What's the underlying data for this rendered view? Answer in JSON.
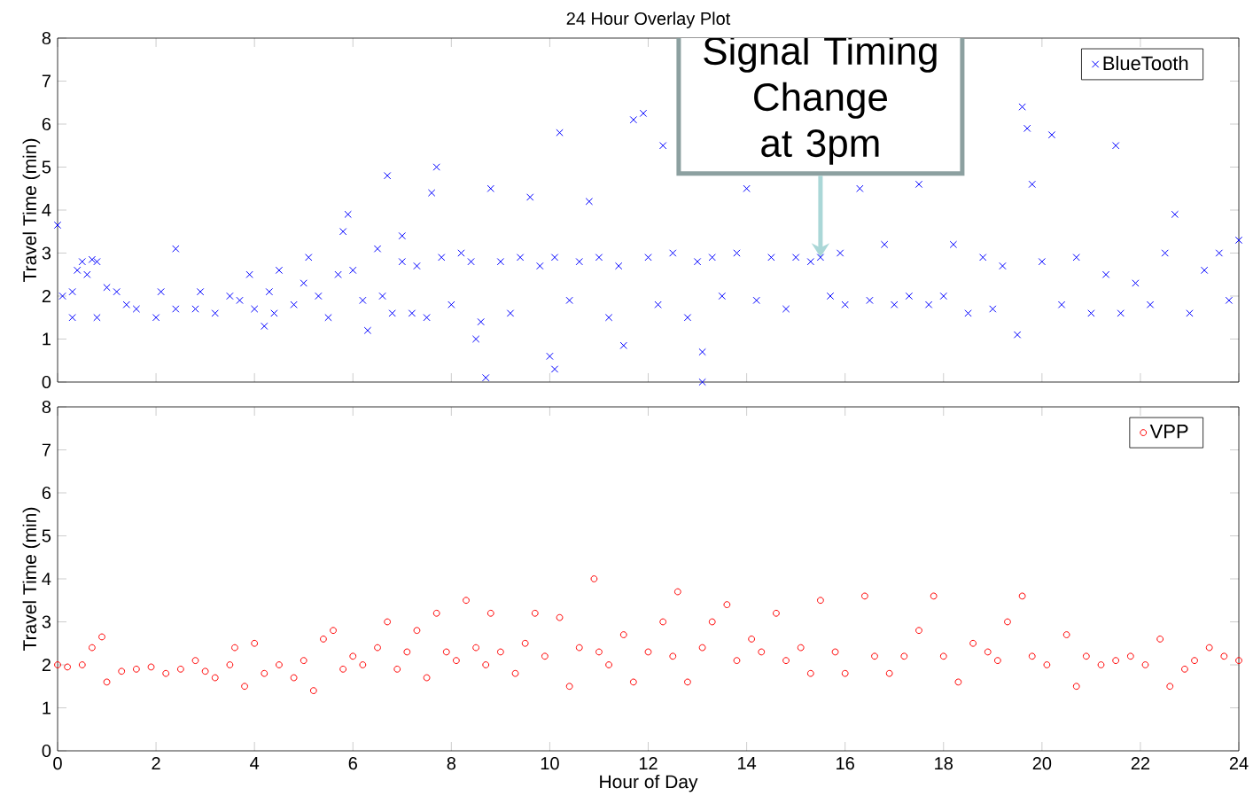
{
  "chart_data": [
    {
      "type": "scatter",
      "title": "24 Hour Overlay Plot",
      "ylabel": "Travel Time (min)",
      "xlim": [
        0,
        24
      ],
      "ylim": [
        0,
        8
      ],
      "xticks": [
        0,
        2,
        4,
        6,
        8,
        10,
        12,
        14,
        16,
        18,
        20,
        22,
        24
      ],
      "yticks": [
        0,
        1,
        2,
        3,
        4,
        5,
        6,
        7,
        8
      ],
      "tick_labels": "y",
      "legend": "top right",
      "marker": "cross",
      "grid": false,
      "annotations": [
        {
          "text": "Signal Timing Change at 3pm",
          "x": 15.5,
          "y": 2.9
        }
      ],
      "series": [
        {
          "name": "BlueTooth",
          "color": "#0000ff",
          "x": [
            0.0,
            0.1,
            0.3,
            0.3,
            0.4,
            0.5,
            0.6,
            0.7,
            0.8,
            0.8,
            1.0,
            1.2,
            1.4,
            1.6,
            2.0,
            2.1,
            2.4,
            2.4,
            2.8,
            2.9,
            3.2,
            3.5,
            3.7,
            3.9,
            4.0,
            4.2,
            4.3,
            4.4,
            4.5,
            4.8,
            5.0,
            5.1,
            5.3,
            5.5,
            5.7,
            5.8,
            5.9,
            6.0,
            6.2,
            6.3,
            6.5,
            6.6,
            6.7,
            6.8,
            7.0,
            7.0,
            7.2,
            7.3,
            7.5,
            7.6,
            7.7,
            7.8,
            8.0,
            8.2,
            8.4,
            8.5,
            8.6,
            8.7,
            8.8,
            9.0,
            9.2,
            9.4,
            9.6,
            9.8,
            10.0,
            10.1,
            10.1,
            10.2,
            10.4,
            10.6,
            10.8,
            11.0,
            11.2,
            11.4,
            11.5,
            11.7,
            11.9,
            12.0,
            12.2,
            12.3,
            12.5,
            12.8,
            13.0,
            13.1,
            13.1,
            13.3,
            13.5,
            13.8,
            14.0,
            14.2,
            14.5,
            14.8,
            15.0,
            15.3,
            15.5,
            15.7,
            15.9,
            16.0,
            16.3,
            16.5,
            16.8,
            17.0,
            17.3,
            17.5,
            17.7,
            18.0,
            18.2,
            18.5,
            18.8,
            19.0,
            19.2,
            19.5,
            19.6,
            19.7,
            19.8,
            20.0,
            20.2,
            20.4,
            20.7,
            21.0,
            21.3,
            21.5,
            21.6,
            21.9,
            22.2,
            22.5,
            22.7,
            23.0,
            23.3,
            23.6,
            23.8,
            24.0
          ],
          "values": [
            3.65,
            2.0,
            2.1,
            1.5,
            2.6,
            2.8,
            2.5,
            2.85,
            1.5,
            2.8,
            2.2,
            2.1,
            1.8,
            1.7,
            1.5,
            2.1,
            1.7,
            3.1,
            1.7,
            2.1,
            1.6,
            2.0,
            1.9,
            2.5,
            1.7,
            1.3,
            2.1,
            1.6,
            2.6,
            1.8,
            2.3,
            2.9,
            2.0,
            1.5,
            2.5,
            3.5,
            3.9,
            2.6,
            1.9,
            1.2,
            3.1,
            2.0,
            4.8,
            1.6,
            2.8,
            3.4,
            1.6,
            2.7,
            1.5,
            4.4,
            5.0,
            2.9,
            1.8,
            3.0,
            2.8,
            1.0,
            1.4,
            0.1,
            4.5,
            2.8,
            1.6,
            2.9,
            4.3,
            2.7,
            0.6,
            0.3,
            2.9,
            5.8,
            1.9,
            2.8,
            4.2,
            2.9,
            1.5,
            2.7,
            0.85,
            6.1,
            6.25,
            2.9,
            1.8,
            5.5,
            3.0,
            1.5,
            2.8,
            0.7,
            0.0,
            2.9,
            2.0,
            3.0,
            4.5,
            1.9,
            2.9,
            1.7,
            2.9,
            2.8,
            2.9,
            2.0,
            3.0,
            1.8,
            4.5,
            1.9,
            3.2,
            1.8,
            2.0,
            4.6,
            1.8,
            2.0,
            3.2,
            1.6,
            2.9,
            1.7,
            2.7,
            1.1,
            6.4,
            5.9,
            4.6,
            2.8,
            5.75,
            1.8,
            2.9,
            1.6,
            2.5,
            5.5,
            1.6,
            2.3,
            1.8,
            3.0,
            3.9,
            1.6,
            2.6,
            3.0,
            1.9,
            3.3
          ]
        }
      ]
    },
    {
      "type": "scatter",
      "xlabel": "Hour of Day",
      "ylabel": "Travel Time (min)",
      "xlim": [
        0,
        24
      ],
      "ylim": [
        0,
        8
      ],
      "xticks": [
        0,
        2,
        4,
        6,
        8,
        10,
        12,
        14,
        16,
        18,
        20,
        22,
        24
      ],
      "yticks": [
        0,
        1,
        2,
        3,
        4,
        5,
        6,
        7,
        8
      ],
      "legend": "top right",
      "marker": "circle",
      "grid": false,
      "series": [
        {
          "name": "VPP",
          "color": "#ff0000",
          "x": [
            0.0,
            0.2,
            0.5,
            0.7,
            0.9,
            1.0,
            1.3,
            1.6,
            1.9,
            2.2,
            2.5,
            2.8,
            3.0,
            3.2,
            3.5,
            3.6,
            3.8,
            4.0,
            4.2,
            4.5,
            4.8,
            5.0,
            5.2,
            5.4,
            5.6,
            5.8,
            6.0,
            6.2,
            6.5,
            6.7,
            6.9,
            7.1,
            7.3,
            7.5,
            7.7,
            7.9,
            8.1,
            8.3,
            8.5,
            8.7,
            8.8,
            9.0,
            9.3,
            9.5,
            9.7,
            9.9,
            10.2,
            10.4,
            10.6,
            10.9,
            11.0,
            11.2,
            11.5,
            11.7,
            12.0,
            12.3,
            12.5,
            12.6,
            12.8,
            13.1,
            13.3,
            13.6,
            13.8,
            14.1,
            14.3,
            14.6,
            14.8,
            15.1,
            15.3,
            15.5,
            15.8,
            16.0,
            16.4,
            16.6,
            16.9,
            17.2,
            17.5,
            17.8,
            18.0,
            18.3,
            18.6,
            18.9,
            19.1,
            19.3,
            19.6,
            19.8,
            20.1,
            20.5,
            20.7,
            20.9,
            21.2,
            21.5,
            21.8,
            22.1,
            22.4,
            22.6,
            22.9,
            23.1,
            23.4,
            23.7,
            24.0
          ],
          "values": [
            2.0,
            1.95,
            2.0,
            2.4,
            2.65,
            1.6,
            1.85,
            1.9,
            1.95,
            1.8,
            1.9,
            2.1,
            1.85,
            1.7,
            2.0,
            2.4,
            1.5,
            2.5,
            1.8,
            2.0,
            1.7,
            2.1,
            1.4,
            2.6,
            2.8,
            1.9,
            2.2,
            2.0,
            2.4,
            3.0,
            1.9,
            2.3,
            2.8,
            1.7,
            3.2,
            2.3,
            2.1,
            3.5,
            2.4,
            2.0,
            3.2,
            2.3,
            1.8,
            2.5,
            3.2,
            2.2,
            3.1,
            1.5,
            2.4,
            4.0,
            2.3,
            2.0,
            2.7,
            1.6,
            2.3,
            3.0,
            2.2,
            3.7,
            1.6,
            2.4,
            3.0,
            3.4,
            2.1,
            2.6,
            2.3,
            3.2,
            2.1,
            2.4,
            1.8,
            3.5,
            2.3,
            1.8,
            3.6,
            2.2,
            1.8,
            2.2,
            2.8,
            3.6,
            2.2,
            1.6,
            2.5,
            2.3,
            2.1,
            3.0,
            3.6,
            2.2,
            2.0,
            2.7,
            1.5,
            2.2,
            2.0,
            2.1,
            2.2,
            2.0,
            2.6,
            1.5,
            1.9,
            2.1,
            2.4,
            2.2,
            2.1
          ]
        }
      ]
    }
  ]
}
